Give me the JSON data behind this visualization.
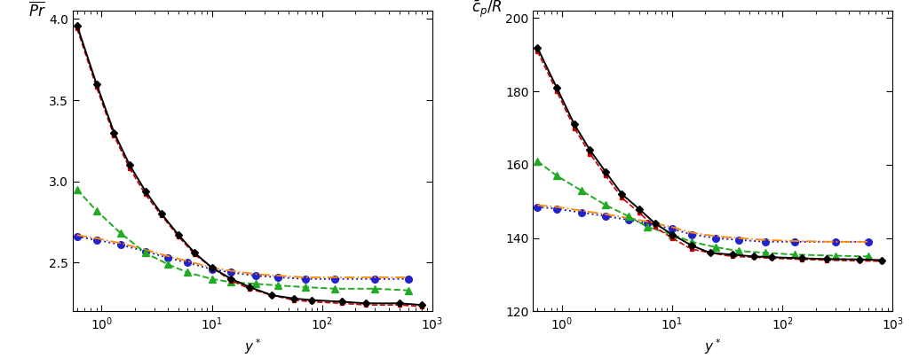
{
  "left_ylabel": "$\\overline{Pr}$",
  "right_ylabel": "$\\bar{c}_p/R$",
  "xlabel": "$y^*$",
  "left_ylim": [
    2.2,
    4.05
  ],
  "right_ylim": [
    120,
    202
  ],
  "left_yticks": [
    2.5,
    3.0,
    3.5,
    4.0
  ],
  "right_yticks": [
    120,
    140,
    160,
    180,
    200
  ],
  "xlim": [
    0.55,
    1000
  ],
  "series": [
    {
      "name": "black_solid",
      "color": "#000000",
      "linestyle": "-",
      "marker": "D",
      "markersize": 4.5,
      "linewidth": 1.4,
      "zorder": 5,
      "left_y": [
        3.96,
        3.6,
        3.3,
        3.1,
        2.94,
        2.8,
        2.67,
        2.56,
        2.47,
        2.4,
        2.35,
        2.3,
        2.28,
        2.27,
        2.26,
        2.25,
        2.25,
        2.24
      ],
      "right_y": [
        192,
        181,
        171,
        164,
        158,
        152,
        148,
        144,
        141,
        138,
        136,
        135.5,
        135.0,
        134.8,
        134.5,
        134.3,
        134.2,
        134.0
      ],
      "x": [
        0.6,
        0.9,
        1.3,
        1.8,
        2.5,
        3.5,
        5.0,
        7.0,
        10,
        15,
        22,
        35,
        55,
        80,
        150,
        250,
        500,
        800
      ]
    },
    {
      "name": "red_dashed",
      "color": "#cc0000",
      "linestyle": "--",
      "marker": "s",
      "markersize": 3.5,
      "linewidth": 1.2,
      "zorder": 4,
      "left_y": [
        3.94,
        3.58,
        3.28,
        3.08,
        2.92,
        2.79,
        2.66,
        2.55,
        2.47,
        2.39,
        2.34,
        2.3,
        2.27,
        2.26,
        2.25,
        2.24,
        2.24,
        2.23
      ],
      "right_y": [
        191,
        180,
        170,
        163,
        157,
        151,
        147,
        143,
        140,
        137,
        136,
        135,
        134.8,
        134.5,
        134.2,
        134.0,
        133.8,
        133.7
      ],
      "x": [
        0.6,
        0.9,
        1.3,
        1.8,
        2.5,
        3.5,
        5.0,
        7.0,
        10,
        15,
        22,
        35,
        55,
        80,
        150,
        250,
        500,
        800
      ]
    },
    {
      "name": "green_dashed",
      "color": "#22aa22",
      "linestyle": "--",
      "marker": "^",
      "markersize": 5.5,
      "linewidth": 1.4,
      "zorder": 3,
      "left_y": [
        2.95,
        2.82,
        2.68,
        2.56,
        2.49,
        2.44,
        2.4,
        2.38,
        2.37,
        2.36,
        2.35,
        2.34,
        2.34,
        2.33
      ],
      "right_y": [
        161,
        157,
        153,
        149,
        146,
        143,
        141,
        139,
        137.5,
        136.5,
        136,
        135.5,
        135.2,
        135.0
      ],
      "x": [
        0.6,
        0.9,
        1.5,
        2.5,
        4.0,
        6.0,
        10,
        15,
        25,
        40,
        70,
        130,
        300,
        600
      ]
    },
    {
      "name": "orange_dotdash",
      "color": "#ff8800",
      "linestyle": "-.",
      "marker": null,
      "markersize": 0,
      "linewidth": 1.3,
      "zorder": 2,
      "left_y": [
        2.67,
        2.65,
        2.62,
        2.58,
        2.54,
        2.51,
        2.47,
        2.45,
        2.43,
        2.42,
        2.41,
        2.41,
        2.41,
        2.41
      ],
      "right_y": [
        149,
        148.5,
        147.5,
        146.5,
        145.5,
        144.5,
        143,
        141.5,
        140.5,
        140,
        139.5,
        139.2,
        139.0,
        139.0
      ],
      "x": [
        0.6,
        0.9,
        1.5,
        2.5,
        4.0,
        6.0,
        10,
        15,
        25,
        40,
        70,
        130,
        300,
        600
      ]
    },
    {
      "name": "blue_dotted",
      "color": "#2222cc",
      "linestyle": ":",
      "marker": "o",
      "markersize": 5.5,
      "linewidth": 1.4,
      "zorder": 1,
      "left_y": [
        2.66,
        2.64,
        2.61,
        2.57,
        2.53,
        2.5,
        2.46,
        2.44,
        2.42,
        2.41,
        2.4,
        2.4,
        2.4,
        2.4
      ],
      "right_y": [
        148.5,
        148,
        147,
        146,
        145,
        144,
        142.5,
        141,
        140,
        139.5,
        139,
        139,
        139,
        139
      ],
      "x": [
        0.6,
        0.9,
        1.5,
        2.5,
        4.0,
        6.0,
        10,
        15,
        25,
        40,
        70,
        130,
        300,
        600
      ]
    }
  ]
}
